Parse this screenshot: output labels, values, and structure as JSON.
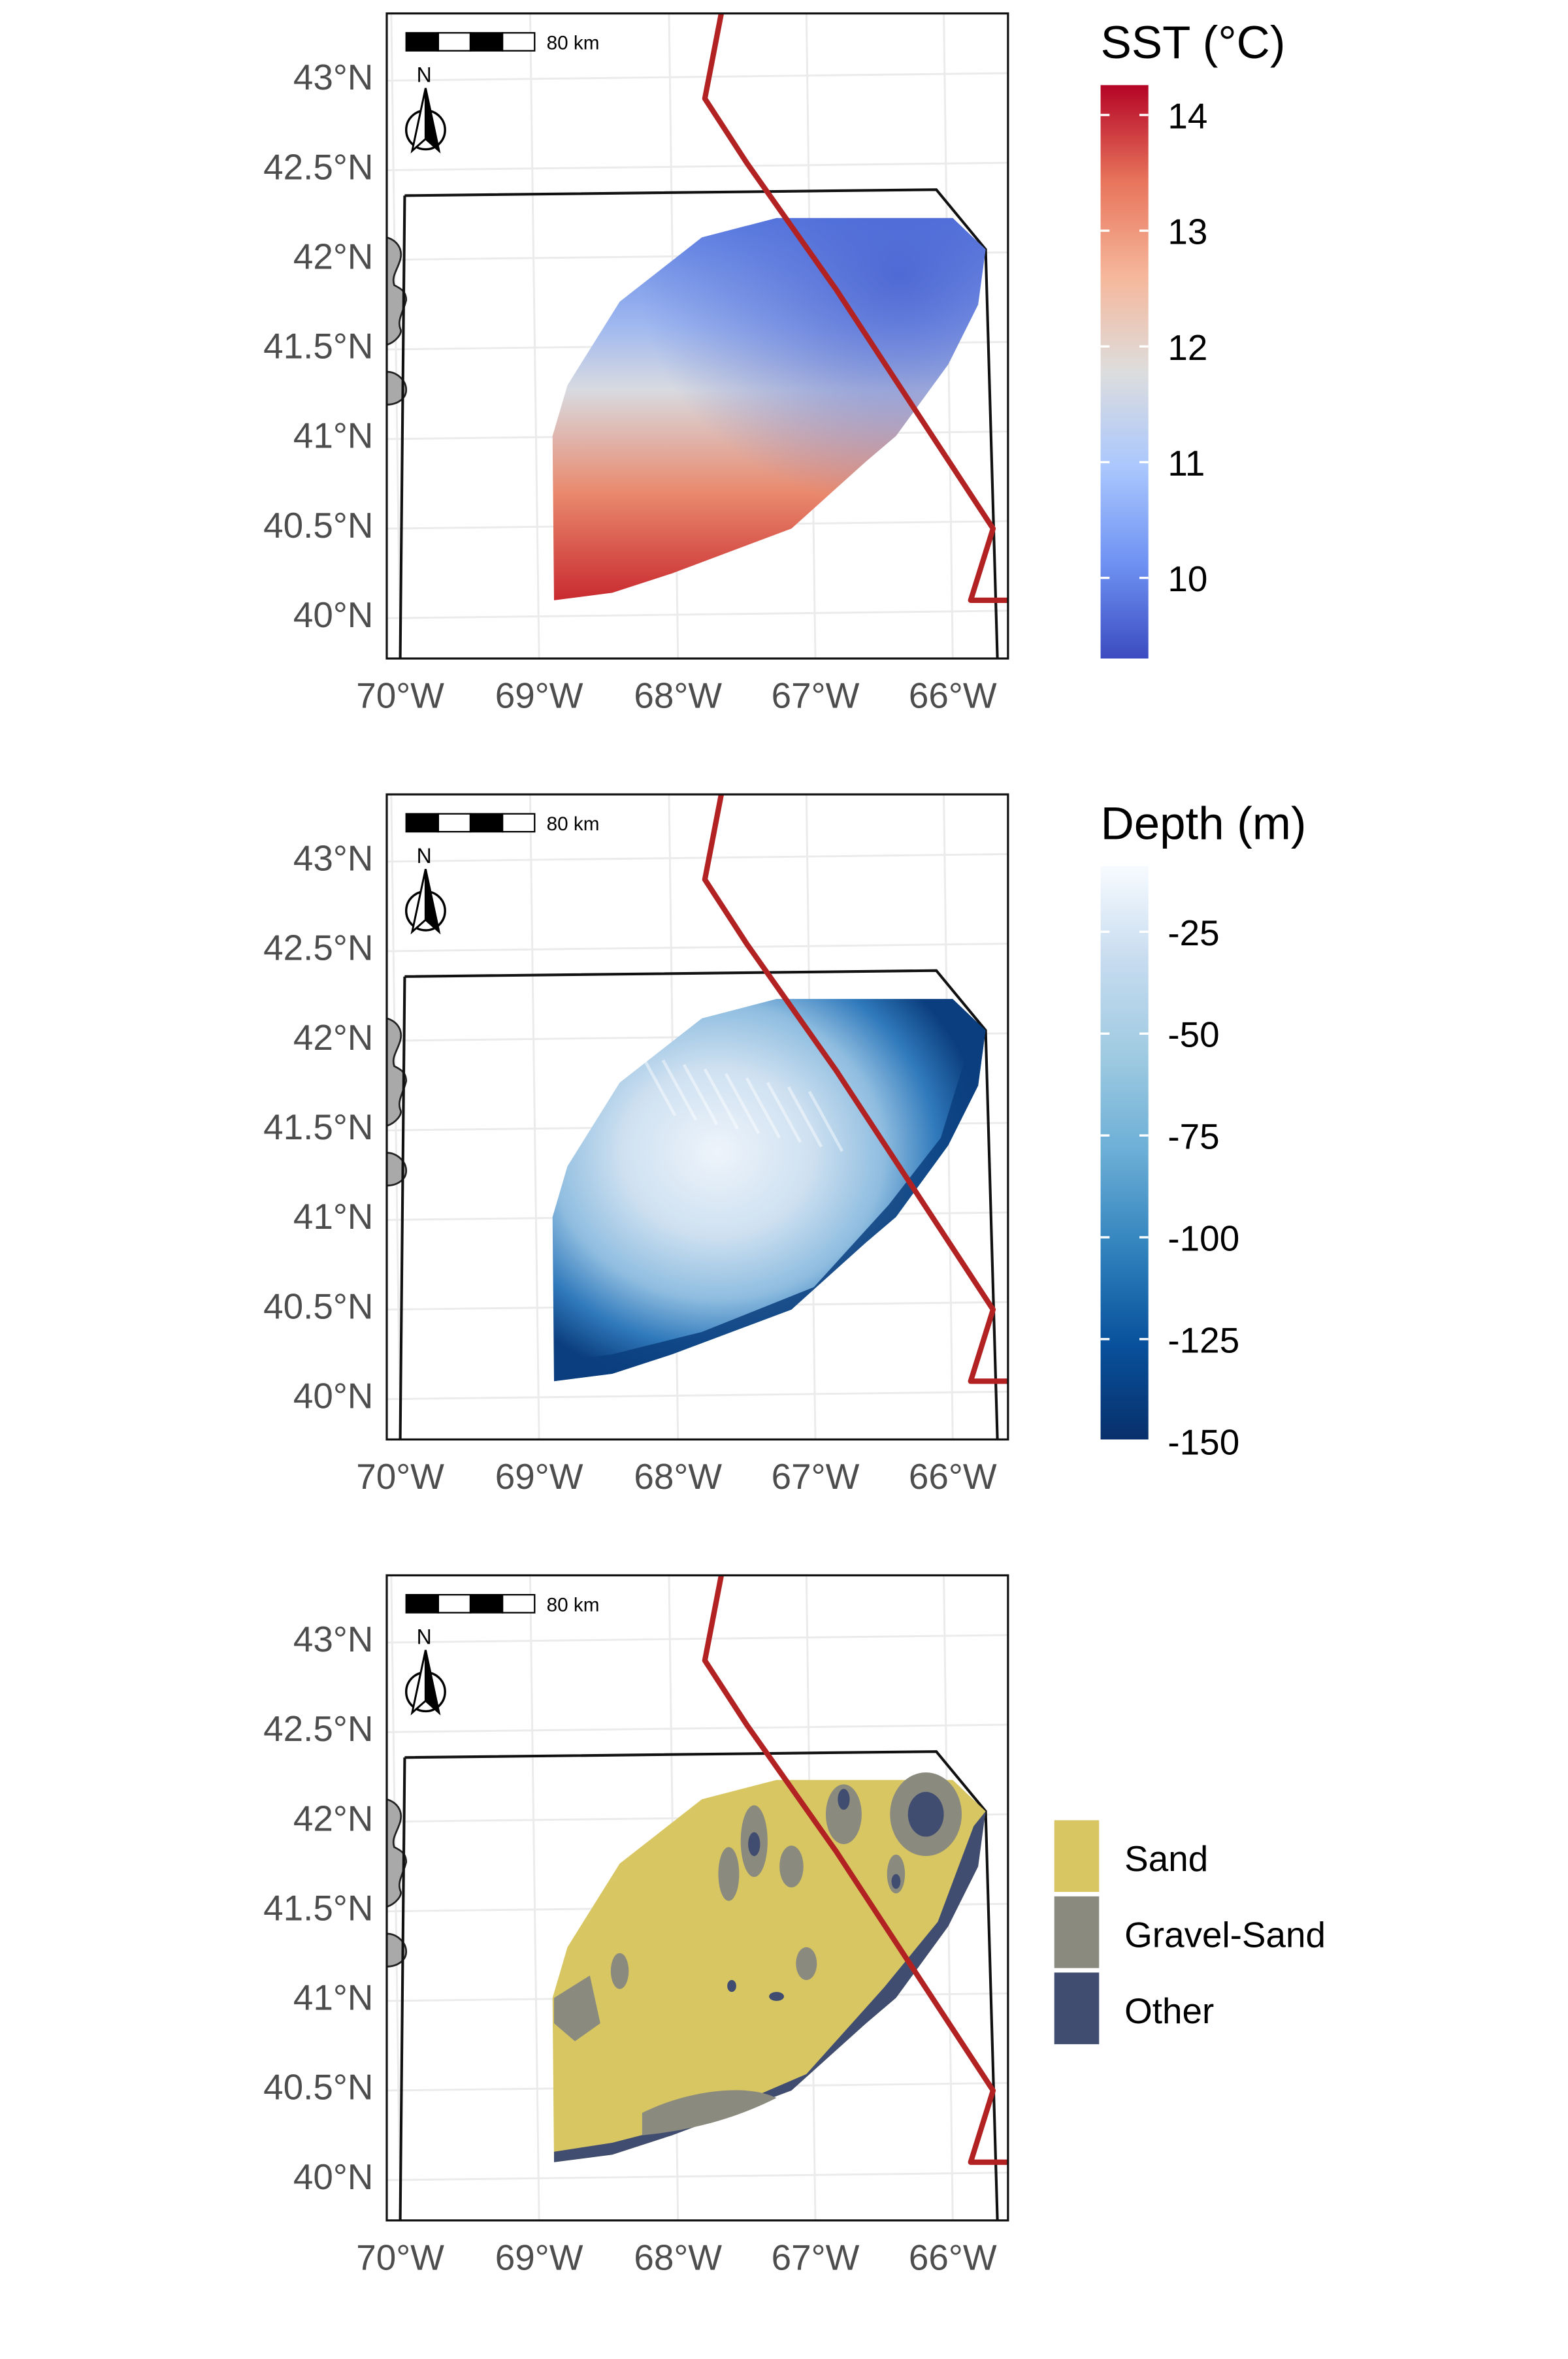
{
  "axis": {
    "lat_ticks": [
      "43°N",
      "42.5°N",
      "42°N",
      "41.5°N",
      "41°N",
      "40.5°N",
      "40°N"
    ],
    "lon_ticks": [
      "70°W",
      "69°W",
      "68°W",
      "67°W",
      "66°W"
    ]
  },
  "scale_bar": {
    "label": "80 km"
  },
  "north_arrow": {
    "label": "N"
  },
  "colors": {
    "boundary": "#b22222",
    "land": "#a9a9a9",
    "grid": "#ebebeb",
    "sand": "#d8c662",
    "gravel_sand": "#8a8a7e",
    "other": "#404d70"
  },
  "panels": [
    {
      "variable": "sst",
      "legend": {
        "title": "SST (°C)",
        "type": "continuous",
        "colors": [
          "#3b4cc0",
          "#6f92f3",
          "#aac7fd",
          "#dddddd",
          "#f6b79b",
          "#e7745b",
          "#b40426"
        ],
        "ticks": [
          "14",
          "13",
          "12",
          "11",
          "10"
        ]
      }
    },
    {
      "variable": "depth",
      "legend": {
        "title": "Depth (m)",
        "type": "continuous",
        "colors": [
          "#f7fbff",
          "#c6dbef",
          "#9ecae1",
          "#6baed6",
          "#3182bd",
          "#08519c",
          "#08306b"
        ],
        "ticks": [
          "-25",
          "-50",
          "-75",
          "-100",
          "-125",
          "-150"
        ]
      }
    },
    {
      "variable": "sediment",
      "legend": {
        "title": "",
        "type": "categorical",
        "items": [
          {
            "label": "Sand",
            "color": "#d8c662"
          },
          {
            "label": "Gravel-Sand",
            "color": "#8a8a7e"
          },
          {
            "label": "Other",
            "color": "#404d70"
          }
        ]
      }
    }
  ]
}
